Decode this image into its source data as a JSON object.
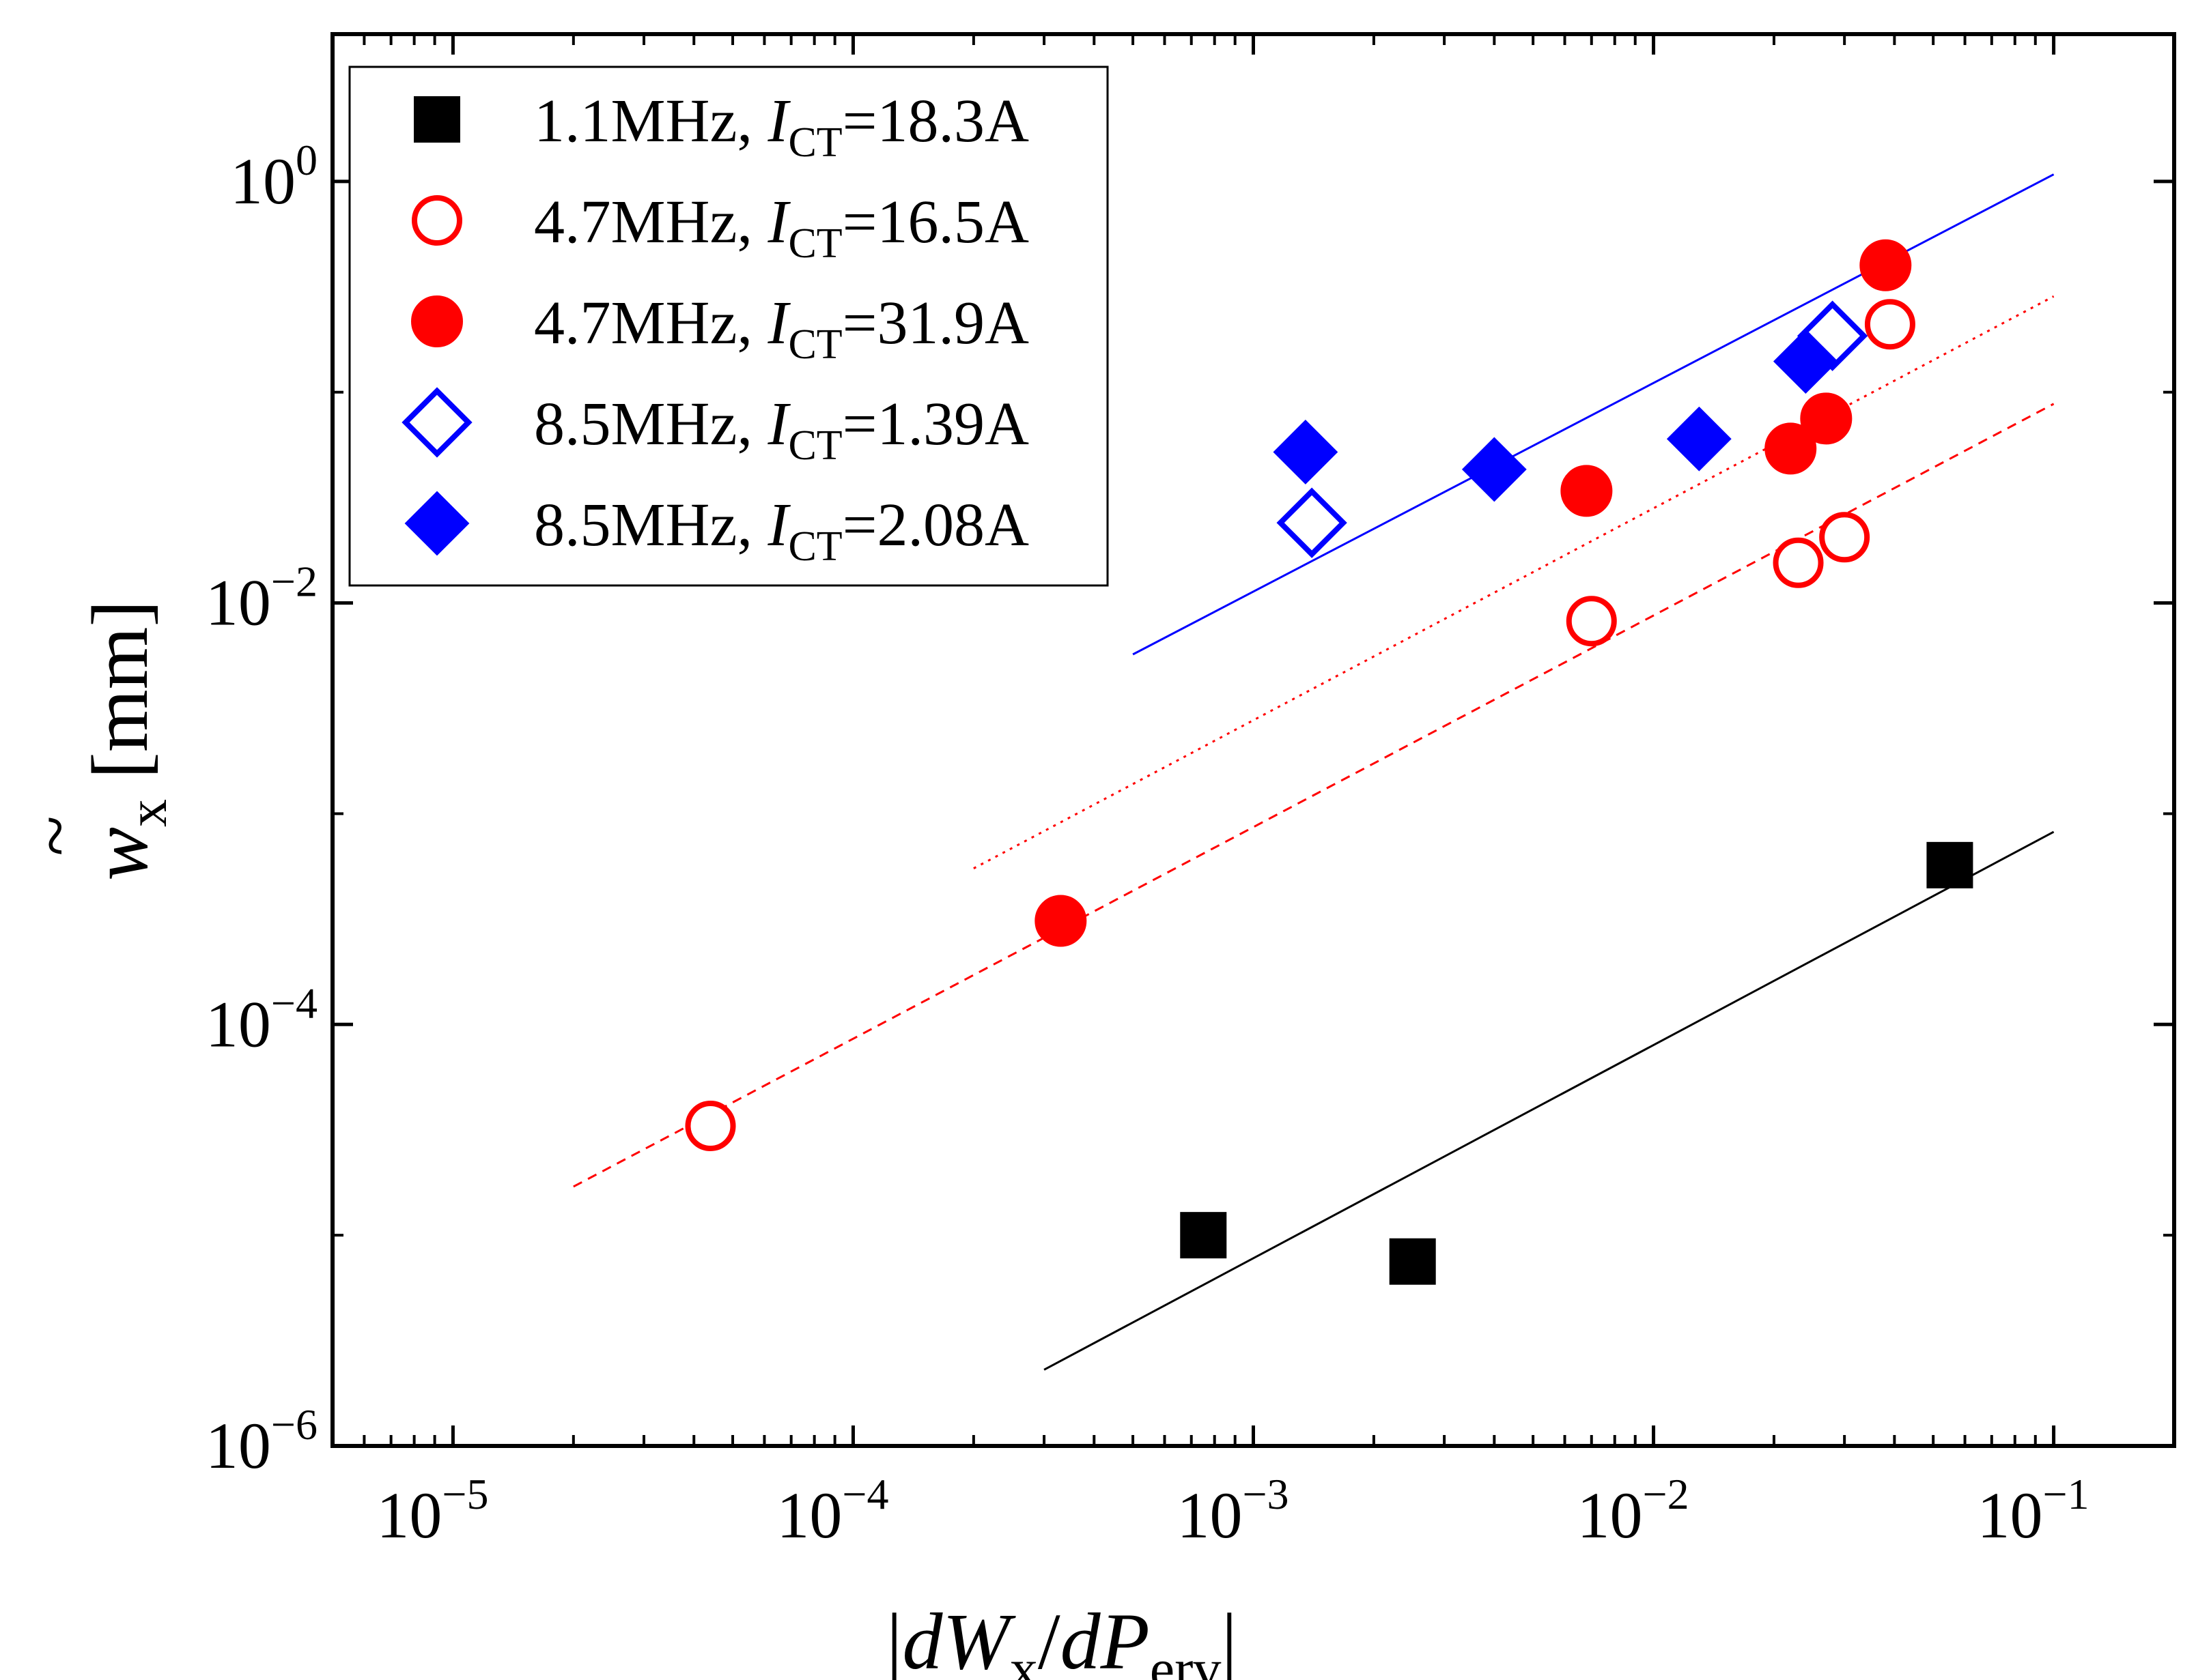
{
  "chart_data": {
    "type": "scatter",
    "xscale": "log",
    "yscale": "log",
    "xlim": [
      5e-06,
      0.2
    ],
    "ylim": [
      1e-06,
      5
    ],
    "x_ticks": [
      {
        "value": 1e-05,
        "base": "10",
        "exp": "−5"
      },
      {
        "value": 0.0001,
        "base": "10",
        "exp": "−4"
      },
      {
        "value": 0.001,
        "base": "10",
        "exp": "−3"
      },
      {
        "value": 0.01,
        "base": "10",
        "exp": "−2"
      },
      {
        "value": 0.1,
        "base": "10",
        "exp": "−1"
      }
    ],
    "y_ticks": [
      {
        "value": 1e-06,
        "base": "10",
        "exp": "−6"
      },
      {
        "value": 0.0001,
        "base": "10",
        "exp": "−4"
      },
      {
        "value": 0.01,
        "base": "10",
        "exp": "−2"
      },
      {
        "value": 1,
        "base": "10",
        "exp": "0"
      }
    ],
    "xlabel": {
      "open": "|",
      "dW": "dW",
      "x_sub": "x",
      "slash": "/",
      "dP": "dP",
      "erv_sub": "erv",
      "close": "|"
    },
    "ylabel": {
      "tilde": "~",
      "w": "w",
      "x_sub": "x",
      "unit": "[mm]"
    },
    "legend_position": "top-left",
    "series": [
      {
        "name": "1.1MHz",
        "freq": "1.1MHz, ",
        "I": "I",
        "I_sub": "CT",
        "eq": "=18.3A",
        "marker": "square",
        "filled": true,
        "color": "#000000",
        "points": [
          [
            0.00075,
            1e-05
          ],
          [
            0.0025,
            7.5e-06
          ],
          [
            0.055,
            0.00057
          ]
        ]
      },
      {
        "name": "4.7MHz open",
        "freq": "4.7MHz, ",
        "I": "I",
        "I_sub": "CT",
        "eq": "=16.5A",
        "marker": "circle",
        "filled": false,
        "color": "#ff0000",
        "points": [
          [
            4.4e-05,
            3.3e-05
          ],
          [
            0.007,
            0.0082
          ],
          [
            0.023,
            0.0155
          ],
          [
            0.03,
            0.0205
          ],
          [
            0.039,
            0.21
          ]
        ]
      },
      {
        "name": "4.7MHz filled",
        "freq": "4.7MHz, ",
        "I": "I",
        "I_sub": "CT",
        "eq": "=31.9A",
        "marker": "circle",
        "filled": true,
        "color": "#ff0000",
        "points": [
          [
            0.00033,
            0.00031
          ],
          [
            0.0068,
            0.034
          ],
          [
            0.022,
            0.054
          ],
          [
            0.027,
            0.075
          ],
          [
            0.038,
            0.4
          ]
        ]
      },
      {
        "name": "8.5MHz open",
        "freq": "8.5MHz, ",
        "I": "I",
        "I_sub": "CT",
        "eq": "=1.39A",
        "marker": "diamond",
        "filled": false,
        "color": "#0000ff",
        "points": [
          [
            0.0014,
            0.024
          ],
          [
            0.028,
            0.185
          ]
        ]
      },
      {
        "name": "8.5MHz filled",
        "freq": "8.5MHz, ",
        "I": "I",
        "I_sub": "CT",
        "eq": "=2.08A",
        "marker": "diamond",
        "filled": true,
        "color": "#0000ff",
        "points": [
          [
            0.00135,
            0.052
          ],
          [
            0.004,
            0.043
          ],
          [
            0.013,
            0.06
          ],
          [
            0.024,
            0.14
          ]
        ]
      }
    ],
    "fit_lines": [
      {
        "color": "#000000",
        "style": "solid",
        "from": [
          0.0003,
          2.3e-06
        ],
        "to": [
          0.1,
          0.00082
        ]
      },
      {
        "color": "#ff0000",
        "style": "dashed",
        "from": [
          2e-05,
          1.7e-05
        ],
        "to": [
          0.1,
          0.088
        ]
      },
      {
        "color": "#ff0000",
        "style": "dotted",
        "from": [
          0.0002,
          0.00055
        ],
        "to": [
          0.1,
          0.285
        ]
      },
      {
        "color": "#0000ff",
        "style": "solid",
        "from": [
          0.0005,
          0.0057
        ],
        "to": [
          0.1,
          1.08
        ]
      }
    ]
  }
}
